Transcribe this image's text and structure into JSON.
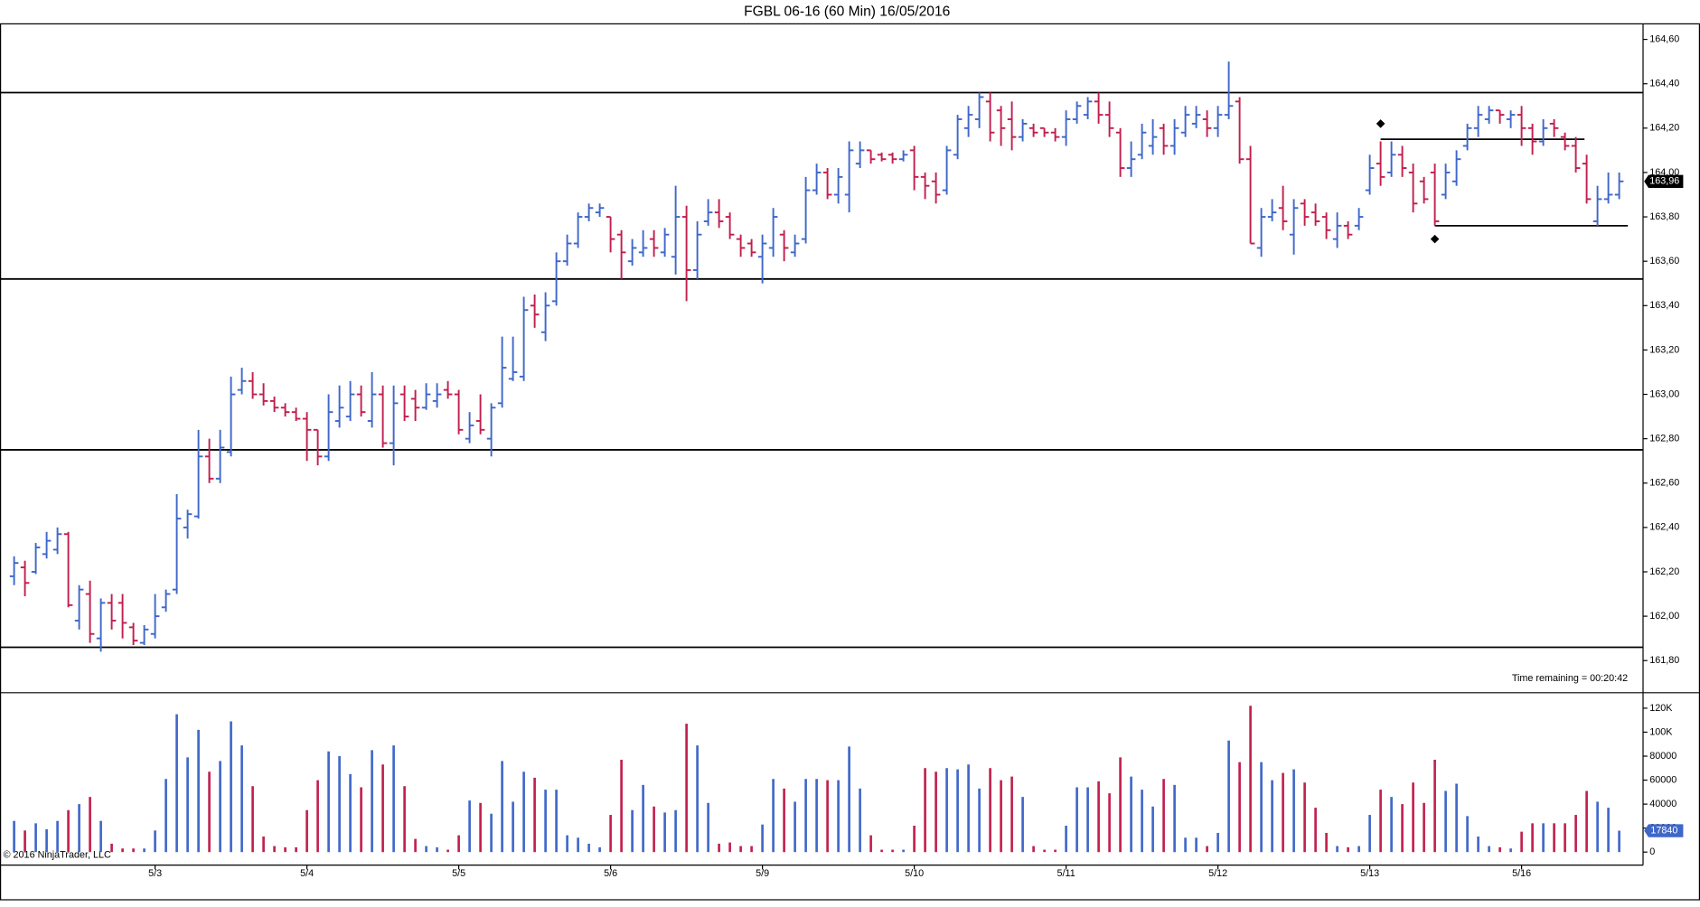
{
  "chart_data": {
    "type": "ohlc",
    "title": "FGBL 06-16 (60 Min)  16/05/2016",
    "annotation": "Time remaining = 00:20:42",
    "copyright": "© 2016 NinjaTrader, LLC",
    "up_color": "#3f67c9",
    "down_color": "#c11f4e",
    "categories": [
      null,
      null,
      null,
      null,
      null,
      null,
      null,
      null,
      null,
      null,
      null,
      null,
      null,
      "5/3",
      null,
      null,
      null,
      null,
      null,
      null,
      null,
      null,
      null,
      null,
      null,
      null,
      null,
      "5/4",
      null,
      null,
      null,
      null,
      null,
      null,
      null,
      null,
      null,
      null,
      null,
      null,
      null,
      "5/5",
      null,
      null,
      null,
      null,
      null,
      null,
      null,
      null,
      null,
      null,
      null,
      null,
      null,
      "5/6",
      null,
      null,
      null,
      null,
      null,
      null,
      null,
      null,
      null,
      null,
      null,
      null,
      null,
      "5/9",
      null,
      null,
      null,
      null,
      null,
      null,
      null,
      null,
      null,
      null,
      null,
      null,
      null,
      "5/10",
      null,
      null,
      null,
      null,
      null,
      null,
      null,
      null,
      null,
      null,
      null,
      null,
      null,
      "5/11",
      null,
      null,
      null,
      null,
      null,
      null,
      null,
      null,
      null,
      null,
      null,
      null,
      null,
      "5/12",
      null,
      null,
      null,
      null,
      null,
      null,
      null,
      null,
      null,
      null,
      null,
      null,
      null,
      "5/13",
      null,
      null,
      null,
      null,
      null,
      null,
      null,
      null,
      null,
      null,
      null,
      null,
      null,
      "5/16",
      null,
      null,
      null,
      null,
      null,
      null,
      null,
      null,
      null
    ],
    "open": [
      162.18,
      162.22,
      162.2,
      162.28,
      162.3,
      162.37,
      161.98,
      162.1,
      161.9,
      162.06,
      162.06,
      161.95,
      161.88,
      161.92,
      162.04,
      162.12,
      162.4,
      162.45,
      162.72,
      162.62,
      162.74,
      163.02,
      163.06,
      163.0,
      162.97,
      162.94,
      162.92,
      162.89,
      162.84,
      162.72,
      162.88,
      162.9,
      163.0,
      162.88,
      163.0,
      162.78,
      163.0,
      162.98,
      162.94,
      162.97,
      163.02,
      163.0,
      162.8,
      162.88,
      162.8,
      162.96,
      163.07,
      163.08,
      163.4,
      163.28,
      163.42,
      163.6,
      163.68,
      163.8,
      163.82,
      163.8,
      163.72,
      163.6,
      163.64,
      163.7,
      163.64,
      163.62,
      163.8,
      163.56,
      163.78,
      163.82,
      163.8,
      163.7,
      163.68,
      163.62,
      163.66,
      163.72,
      163.64,
      163.7,
      163.92,
      164.0,
      163.9,
      163.9,
      164.04,
      164.1,
      164.08,
      164.08,
      164.06,
      164.1,
      163.98,
      163.96,
      163.92,
      164.08,
      164.2,
      164.24,
      164.32,
      164.28,
      164.24,
      164.16,
      164.2,
      164.2,
      164.18,
      164.16,
      164.24,
      164.26,
      164.32,
      164.26,
      164.18,
      164.02,
      164.08,
      164.12,
      164.2,
      164.12,
      164.18,
      164.22,
      164.24,
      164.2,
      164.26,
      164.32,
      164.06,
      163.66,
      163.8,
      163.84,
      163.72,
      163.86,
      163.82,
      163.8,
      163.7,
      163.76,
      163.76,
      163.92,
      164.04,
      164.0,
      164.08,
      164.0,
      163.96,
      164.0,
      163.9,
      163.96,
      164.12,
      164.2,
      164.24,
      164.28,
      164.24,
      164.26,
      164.2,
      164.14,
      164.22,
      164.16,
      164.12,
      164.04,
      163.78,
      163.88,
      163.9
    ],
    "high": [
      162.27,
      162.25,
      162.33,
      162.38,
      162.4,
      162.38,
      162.14,
      162.16,
      162.08,
      162.1,
      162.1,
      161.97,
      161.96,
      162.1,
      162.12,
      162.55,
      162.48,
      162.84,
      162.8,
      162.84,
      163.08,
      163.12,
      163.1,
      163.05,
      162.99,
      162.96,
      162.94,
      162.92,
      162.84,
      163.0,
      163.04,
      163.06,
      163.04,
      163.1,
      163.04,
      163.04,
      163.04,
      163.02,
      163.05,
      163.05,
      163.06,
      163.02,
      162.92,
      163.0,
      162.96,
      163.26,
      163.26,
      163.44,
      163.45,
      163.46,
      163.64,
      163.72,
      163.82,
      163.86,
      163.86,
      163.8,
      163.74,
      163.7,
      163.74,
      163.74,
      163.75,
      163.94,
      163.85,
      163.78,
      163.88,
      163.88,
      163.82,
      163.72,
      163.7,
      163.72,
      163.84,
      163.74,
      163.72,
      163.98,
      164.04,
      164.02,
      164.02,
      164.14,
      164.14,
      164.1,
      164.09,
      164.09,
      164.1,
      164.12,
      164.0,
      164.0,
      164.12,
      164.26,
      164.3,
      164.36,
      164.36,
      164.3,
      164.32,
      164.24,
      164.22,
      164.2,
      164.2,
      164.28,
      164.32,
      164.34,
      164.36,
      164.32,
      164.2,
      164.14,
      164.22,
      164.24,
      164.22,
      164.24,
      164.3,
      164.3,
      164.28,
      164.3,
      164.5,
      164.34,
      164.12,
      163.84,
      163.88,
      163.94,
      163.88,
      163.88,
      163.86,
      163.82,
      163.82,
      163.78,
      163.84,
      164.08,
      164.14,
      164.14,
      164.12,
      164.04,
      163.98,
      164.04,
      164.04,
      164.1,
      164.22,
      164.3,
      164.3,
      164.28,
      164.28,
      164.3,
      164.22,
      164.24,
      164.24,
      164.18,
      164.16,
      164.08,
      163.94,
      164.0,
      164.0
    ],
    "low": [
      162.14,
      162.09,
      162.19,
      162.26,
      162.28,
      162.04,
      161.94,
      161.88,
      161.84,
      161.94,
      161.9,
      161.87,
      161.87,
      161.9,
      162.02,
      162.1,
      162.35,
      162.44,
      162.6,
      162.6,
      162.72,
      163.0,
      162.98,
      162.95,
      162.92,
      162.9,
      162.88,
      162.7,
      162.68,
      162.7,
      162.85,
      162.88,
      162.9,
      162.85,
      162.76,
      162.68,
      162.88,
      162.88,
      162.93,
      162.94,
      162.98,
      162.82,
      162.78,
      162.82,
      162.72,
      162.94,
      163.06,
      163.06,
      163.3,
      163.24,
      163.4,
      163.58,
      163.66,
      163.78,
      163.8,
      163.64,
      163.52,
      163.58,
      163.62,
      163.62,
      163.62,
      163.54,
      163.42,
      163.52,
      163.76,
      163.75,
      163.7,
      163.62,
      163.62,
      163.5,
      163.62,
      163.6,
      163.62,
      163.68,
      163.9,
      163.88,
      163.86,
      163.82,
      164.02,
      164.04,
      164.05,
      164.04,
      164.05,
      163.92,
      163.88,
      163.86,
      163.9,
      164.06,
      164.16,
      164.2,
      164.14,
      164.12,
      164.1,
      164.14,
      164.16,
      164.16,
      164.14,
      164.12,
      164.22,
      164.24,
      164.22,
      164.16,
      163.98,
      163.98,
      164.06,
      164.08,
      164.08,
      164.08,
      164.16,
      164.2,
      164.16,
      164.16,
      164.24,
      164.04,
      163.68,
      163.62,
      163.78,
      163.74,
      163.63,
      163.76,
      163.76,
      163.7,
      163.66,
      163.7,
      163.74,
      163.9,
      163.94,
      163.98,
      163.98,
      163.82,
      163.86,
      163.76,
      163.88,
      163.94,
      164.1,
      164.16,
      164.22,
      164.22,
      164.2,
      164.12,
      164.08,
      164.12,
      164.16,
      164.1,
      164.0,
      163.86,
      163.76,
      163.86,
      163.88
    ],
    "close": [
      162.24,
      162.15,
      162.31,
      162.34,
      162.37,
      162.05,
      162.12,
      161.92,
      162.06,
      161.98,
      161.97,
      161.89,
      161.94,
      162.0,
      162.1,
      162.44,
      162.46,
      162.72,
      162.62,
      162.76,
      163.0,
      163.06,
      163.0,
      162.97,
      162.94,
      162.92,
      162.89,
      162.84,
      162.72,
      162.92,
      162.94,
      163.0,
      162.92,
      163.0,
      162.78,
      162.96,
      162.9,
      162.94,
      163.0,
      163.0,
      163.0,
      162.84,
      162.86,
      162.84,
      162.94,
      163.12,
      163.1,
      163.38,
      163.36,
      163.4,
      163.6,
      163.68,
      163.8,
      163.84,
      163.84,
      163.7,
      163.64,
      163.66,
      163.66,
      163.66,
      163.72,
      163.8,
      163.56,
      163.72,
      163.82,
      163.78,
      163.72,
      163.66,
      163.64,
      163.68,
      163.8,
      163.66,
      163.68,
      163.92,
      164.0,
      163.9,
      163.98,
      164.1,
      164.1,
      164.06,
      164.06,
      164.06,
      164.08,
      163.98,
      163.94,
      163.9,
      164.1,
      164.24,
      164.26,
      164.34,
      164.18,
      164.2,
      164.16,
      164.22,
      164.18,
      164.18,
      164.16,
      164.24,
      164.3,
      164.32,
      164.26,
      164.2,
      164.02,
      164.06,
      164.18,
      164.16,
      164.12,
      164.2,
      164.26,
      164.26,
      164.2,
      164.26,
      164.3,
      164.06,
      163.68,
      163.8,
      163.82,
      163.78,
      163.84,
      163.8,
      163.78,
      163.74,
      163.76,
      163.72,
      163.8,
      164.02,
      163.98,
      164.08,
      164.02,
      163.86,
      163.88,
      163.78,
      164.0,
      164.06,
      164.2,
      164.26,
      164.28,
      164.26,
      164.26,
      164.2,
      164.14,
      164.2,
      164.2,
      164.12,
      164.02,
      163.88,
      163.88,
      163.9,
      163.96
    ],
    "last_close_label": "163,96",
    "ylim": [
      161.66,
      164.67
    ],
    "yticks": [
      {
        "value": 161.8,
        "label": "161,80"
      },
      {
        "value": 162.0,
        "label": "162,00"
      },
      {
        "value": 162.2,
        "label": "162,20"
      },
      {
        "value": 162.4,
        "label": "162,40"
      },
      {
        "value": 162.6,
        "label": "162,60"
      },
      {
        "value": 162.8,
        "label": "162,80"
      },
      {
        "value": 163.0,
        "label": "163,00"
      },
      {
        "value": 163.2,
        "label": "163,20"
      },
      {
        "value": 163.4,
        "label": "163,40"
      },
      {
        "value": 163.6,
        "label": "163,60"
      },
      {
        "value": 163.8,
        "label": "163,80"
      },
      {
        "value": 164.0,
        "label": "164,00"
      },
      {
        "value": 164.2,
        "label": "164,20"
      },
      {
        "value": 164.4,
        "label": "164,40"
      },
      {
        "value": 164.6,
        "label": "164,60"
      }
    ],
    "levels": [
      164.36,
      163.52,
      162.75,
      161.86
    ],
    "segments": [
      {
        "from": 126,
        "to": 144,
        "value": 164.15
      },
      {
        "from": 131,
        "to": 148,
        "value": 163.76
      }
    ],
    "markers": [
      {
        "bar": 126,
        "value": 164.22
      },
      {
        "bar": 131,
        "value": 163.7
      }
    ],
    "volume": {
      "values": [
        26000,
        18000,
        24000,
        19000,
        26000,
        35000,
        40000,
        46000,
        26000,
        7000,
        3000,
        3000,
        3000,
        18000,
        61000,
        115000,
        79000,
        102000,
        67000,
        76000,
        109000,
        89000,
        55000,
        13000,
        5000,
        4000,
        4000,
        35000,
        60000,
        84000,
        80000,
        65000,
        54000,
        85000,
        73000,
        89000,
        55000,
        11000,
        5000,
        4000,
        2000,
        14000,
        43000,
        41000,
        32000,
        76000,
        42000,
        67000,
        62000,
        52000,
        52000,
        14000,
        12000,
        7000,
        4000,
        31000,
        77000,
        35000,
        56000,
        38000,
        33000,
        35000,
        107000,
        89000,
        41000,
        7000,
        8000,
        5000,
        5000,
        23000,
        61000,
        53000,
        42000,
        61000,
        61000,
        60000,
        60000,
        88000,
        53000,
        14000,
        2000,
        2000,
        2000,
        22000,
        70000,
        67000,
        70000,
        69000,
        73000,
        53000,
        70000,
        60000,
        63000,
        46000,
        5000,
        2000,
        2000,
        22000,
        54000,
        54000,
        59000,
        49000,
        79000,
        63000,
        52000,
        38000,
        61000,
        56000,
        12000,
        12000,
        5000,
        16000,
        93000,
        75000,
        122000,
        75000,
        60000,
        66000,
        69000,
        58000,
        37000,
        16000,
        5000,
        4000,
        5000,
        31000,
        52000,
        46000,
        40000,
        58000,
        41000,
        77000,
        51000,
        57000,
        30000,
        13000,
        5000,
        4000,
        3000,
        17000,
        24000,
        24000,
        24000,
        24000,
        31000,
        51000,
        42000,
        37000,
        17840
      ],
      "ylim": [
        0,
        132000
      ],
      "yticks": [
        0,
        20000,
        40000,
        60000,
        80000,
        {
          "value": 100000,
          "label": "100K"
        },
        {
          "value": 120000,
          "label": "120K"
        }
      ]
    }
  }
}
